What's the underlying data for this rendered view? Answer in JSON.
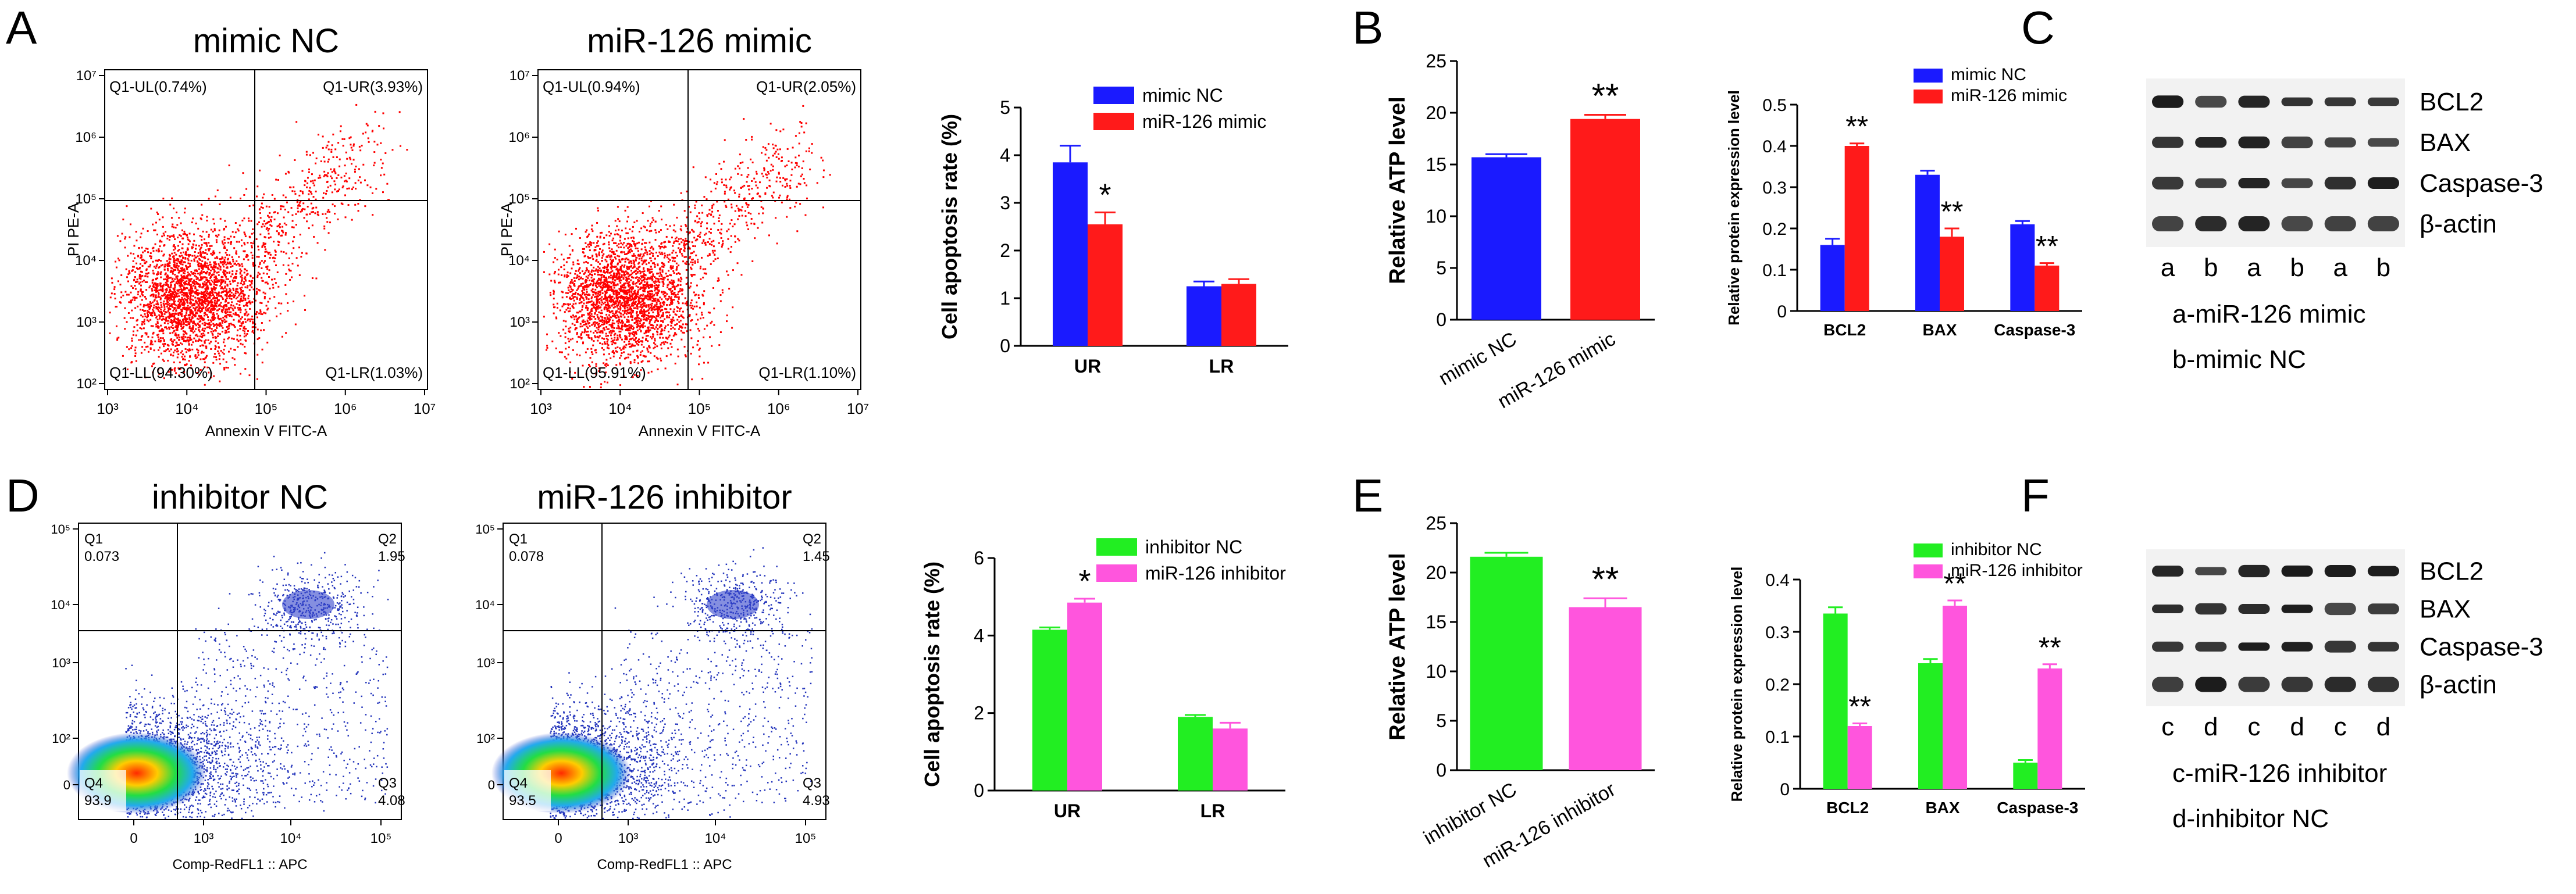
{
  "panels": {
    "A": {
      "letter": "A",
      "plots": [
        {
          "title": "mimic NC",
          "xlabel": "Annexin V FITC-A",
          "ylabel": "PI PE-A",
          "quadrants": {
            "ul": "Q1-UL(0.74%)",
            "ur": "Q1-UR(3.93%)",
            "ll": "Q1-LL(94.30%)",
            "lr": "Q1-LR(1.03%)"
          },
          "xticks": [
            "10³",
            "10⁴",
            "10⁵",
            "10⁶",
            "10⁷"
          ],
          "yticks": [
            "10⁷",
            "10⁶",
            "10⁵",
            "10⁴",
            "10³",
            "10²"
          ]
        },
        {
          "title": "miR-126 mimic",
          "xlabel": "Annexin V FITC-A",
          "ylabel": "PI PE-A",
          "quadrants": {
            "ul": "Q1-UL(0.94%)",
            "ur": "Q1-UR(2.05%)",
            "ll": "Q1-LL(95.91%)",
            "lr": "Q1-LR(1.10%)"
          },
          "xticks": [
            "10³",
            "10⁴",
            "10⁵",
            "10⁶",
            "10⁷"
          ],
          "yticks": [
            "10⁷",
            "10⁶",
            "10⁵",
            "10⁴",
            "10³",
            "10²"
          ]
        }
      ]
    },
    "D": {
      "letter": "D",
      "plots": [
        {
          "title": "inhibitor NC",
          "xlabel": "Comp-RedFL1 :: APC",
          "quadrants": {
            "q1": "Q1",
            "q1v": "0.073",
            "q2": "Q2",
            "q2v": "1.95",
            "q3": "Q3",
            "q3v": "4.08",
            "q4": "Q4",
            "q4v": "93.9"
          },
          "xticks": [
            "0",
            "10³",
            "10⁴",
            "10⁵"
          ],
          "yticks": [
            "10⁵",
            "10⁴",
            "10³",
            "10²",
            "0"
          ]
        },
        {
          "title": "miR-126 inhibitor",
          "xlabel": "Comp-RedFL1 :: APC",
          "quadrants": {
            "q1": "Q1",
            "q1v": "0.078",
            "q2": "Q2",
            "q2v": "1.45",
            "q3": "Q3",
            "q3v": "4.93",
            "q4": "Q4",
            "q4v": "93.5"
          },
          "xticks": [
            "0",
            "10³",
            "10⁴",
            "10⁵"
          ],
          "yticks": [
            "10⁵",
            "10⁴",
            "10³",
            "10²",
            "0"
          ]
        }
      ]
    },
    "B": {
      "letter": "B"
    },
    "C": {
      "letter": "C"
    },
    "E": {
      "letter": "E"
    },
    "F": {
      "letter": "F"
    }
  },
  "blots": {
    "C": {
      "bands": [
        "BCL2",
        "BAX",
        "Caspase-3",
        "β-actin"
      ],
      "lanes": [
        "a",
        "b",
        "a",
        "b",
        "a",
        "b"
      ],
      "legend": [
        "a-miR-126 mimic",
        "b-mimic NC"
      ]
    },
    "F": {
      "bands": [
        "BCL2",
        "BAX",
        "Caspase-3",
        "β-actin"
      ],
      "lanes": [
        "c",
        "d",
        "c",
        "d",
        "c",
        "d"
      ],
      "legend": [
        "c-miR-126 inhibitor",
        "d-inhibitor NC"
      ]
    }
  },
  "colors": {
    "blue": "#1a1aff",
    "red": "#ff1a1a",
    "green": "#22ee22",
    "magenta": "#ff55dd"
  },
  "chart_data": [
    {
      "id": "A-bar",
      "type": "bar",
      "title": "",
      "ylabel": "Cell apoptosis rate (%)",
      "xlabel": "",
      "categories": [
        "UR",
        "LR"
      ],
      "ylim": [
        0,
        5
      ],
      "yticks": [
        0,
        1,
        2,
        3,
        4,
        5
      ],
      "series": [
        {
          "name": "mimic NC",
          "color": "#1a1aff",
          "values": [
            3.85,
            1.25
          ],
          "errors": [
            0.35,
            0.1
          ]
        },
        {
          "name": "miR-126 mimic",
          "color": "#ff1a1a",
          "values": [
            2.55,
            1.3
          ],
          "errors": [
            0.25,
            0.1
          ]
        }
      ],
      "annotations": [
        {
          "category": 0,
          "series": 1,
          "text": "*"
        }
      ]
    },
    {
      "id": "B-bar",
      "type": "bar",
      "ylabel": "Relative ATP level",
      "xlabel": "",
      "categories": [
        "mimic NC",
        "miR-126 mimic"
      ],
      "ylim": [
        0,
        25
      ],
      "yticks": [
        0,
        5,
        10,
        15,
        20,
        25
      ],
      "values": [
        15.7,
        19.4
      ],
      "errors": [
        0.3,
        0.4
      ],
      "colors": [
        "#1a1aff",
        "#ff1a1a"
      ],
      "annotations": [
        {
          "index": 1,
          "text": "**"
        }
      ]
    },
    {
      "id": "C-bar",
      "type": "bar",
      "ylabel": "Relative protein expression level",
      "xlabel": "",
      "categories": [
        "BCL2",
        "BAX",
        "Caspase-3"
      ],
      "ylim": [
        0,
        0.5
      ],
      "yticks": [
        0,
        0.1,
        0.2,
        0.3,
        0.4,
        0.5
      ],
      "series": [
        {
          "name": "mimic NC",
          "color": "#1a1aff",
          "values": [
            0.16,
            0.33,
            0.21
          ],
          "errors": [
            0.015,
            0.01,
            0.008
          ]
        },
        {
          "name": "miR-126 mimic",
          "color": "#ff1a1a",
          "values": [
            0.4,
            0.18,
            0.11
          ],
          "errors": [
            0.006,
            0.02,
            0.006
          ]
        }
      ],
      "annotations": [
        {
          "category": 0,
          "series": 1,
          "text": "**"
        },
        {
          "category": 1,
          "series": 1,
          "text": "**"
        },
        {
          "category": 2,
          "series": 1,
          "text": "**"
        }
      ]
    },
    {
      "id": "D-bar",
      "type": "bar",
      "ylabel": "Cell apoptosis rate (%)",
      "xlabel": "",
      "categories": [
        "UR",
        "LR"
      ],
      "ylim": [
        0,
        6
      ],
      "yticks": [
        0,
        2,
        4,
        6
      ],
      "series": [
        {
          "name": "inhibitor NC",
          "color": "#22ee22",
          "values": [
            4.15,
            1.9
          ],
          "errors": [
            0.06,
            0.05
          ]
        },
        {
          "name": "miR-126 inhibitor",
          "color": "#ff55dd",
          "values": [
            4.85,
            1.6
          ],
          "errors": [
            0.1,
            0.15
          ]
        }
      ],
      "annotations": [
        {
          "category": 0,
          "series": 1,
          "text": "*"
        }
      ]
    },
    {
      "id": "E-bar",
      "type": "bar",
      "ylabel": "Relative ATP level",
      "xlabel": "",
      "categories": [
        "inhibitor NC",
        "miR-126 inhibitor"
      ],
      "ylim": [
        0,
        25
      ],
      "yticks": [
        0,
        5,
        10,
        15,
        20,
        25
      ],
      "values": [
        21.6,
        16.5
      ],
      "errors": [
        0.4,
        0.9
      ],
      "colors": [
        "#22ee22",
        "#ff55dd"
      ],
      "annotations": [
        {
          "index": 1,
          "text": "**"
        }
      ]
    },
    {
      "id": "F-bar",
      "type": "bar",
      "ylabel": "Relative protein expression level",
      "xlabel": "",
      "categories": [
        "BCL2",
        "BAX",
        "Caspase-3"
      ],
      "ylim": [
        0,
        0.4
      ],
      "yticks": [
        0,
        0.1,
        0.2,
        0.3,
        0.4
      ],
      "series": [
        {
          "name": "inhibitor NC",
          "color": "#22ee22",
          "values": [
            0.335,
            0.24,
            0.05
          ],
          "errors": [
            0.012,
            0.008,
            0.005
          ]
        },
        {
          "name": "miR-126 inhibitor",
          "color": "#ff55dd",
          "values": [
            0.12,
            0.35,
            0.23
          ],
          "errors": [
            0.005,
            0.01,
            0.008
          ]
        }
      ],
      "annotations": [
        {
          "category": 0,
          "series": 1,
          "text": "**"
        },
        {
          "category": 1,
          "series": 1,
          "text": "**"
        },
        {
          "category": 2,
          "series": 1,
          "text": "**"
        }
      ]
    }
  ]
}
